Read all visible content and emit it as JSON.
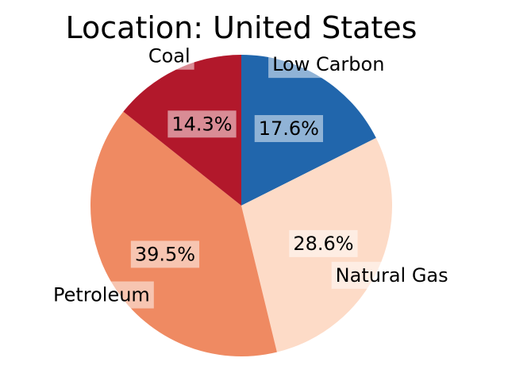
{
  "chart_data": {
    "type": "pie",
    "title": "Location: United States",
    "slices": [
      {
        "label": "Low Carbon",
        "value": 17.6,
        "pct_label": "17.6%",
        "color": "#2166ac"
      },
      {
        "label": "Natural Gas",
        "value": 28.6,
        "pct_label": "28.6%",
        "color": "#fddbc7"
      },
      {
        "label": "Petroleum",
        "value": 39.5,
        "pct_label": "39.5%",
        "color": "#ef8a62"
      },
      {
        "label": "Coal",
        "value": 14.3,
        "pct_label": "14.3%",
        "color": "#b2182b"
      }
    ],
    "start_angle_deg": 90,
    "direction": "clockwise",
    "label_box_color": "#ffffff",
    "label_box_opacity": 0.5
  }
}
